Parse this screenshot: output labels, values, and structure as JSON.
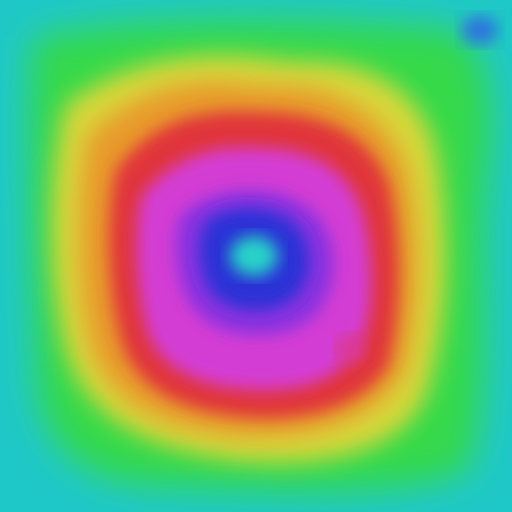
{
  "image": {
    "subject": "false-color-intensity-heatmap",
    "palette": {
      "outer_cyan": "#1fc8c8",
      "green": "#35d94a",
      "yellow": "#d8d83a",
      "orange": "#e89a2c",
      "red": "#e0363a",
      "magenta": "#d43cd4",
      "purple": "#8a32e0",
      "blue": "#2a33d6",
      "center_cyan": "#27d4c8",
      "corner_blue": "#2f6fe0"
    }
  }
}
